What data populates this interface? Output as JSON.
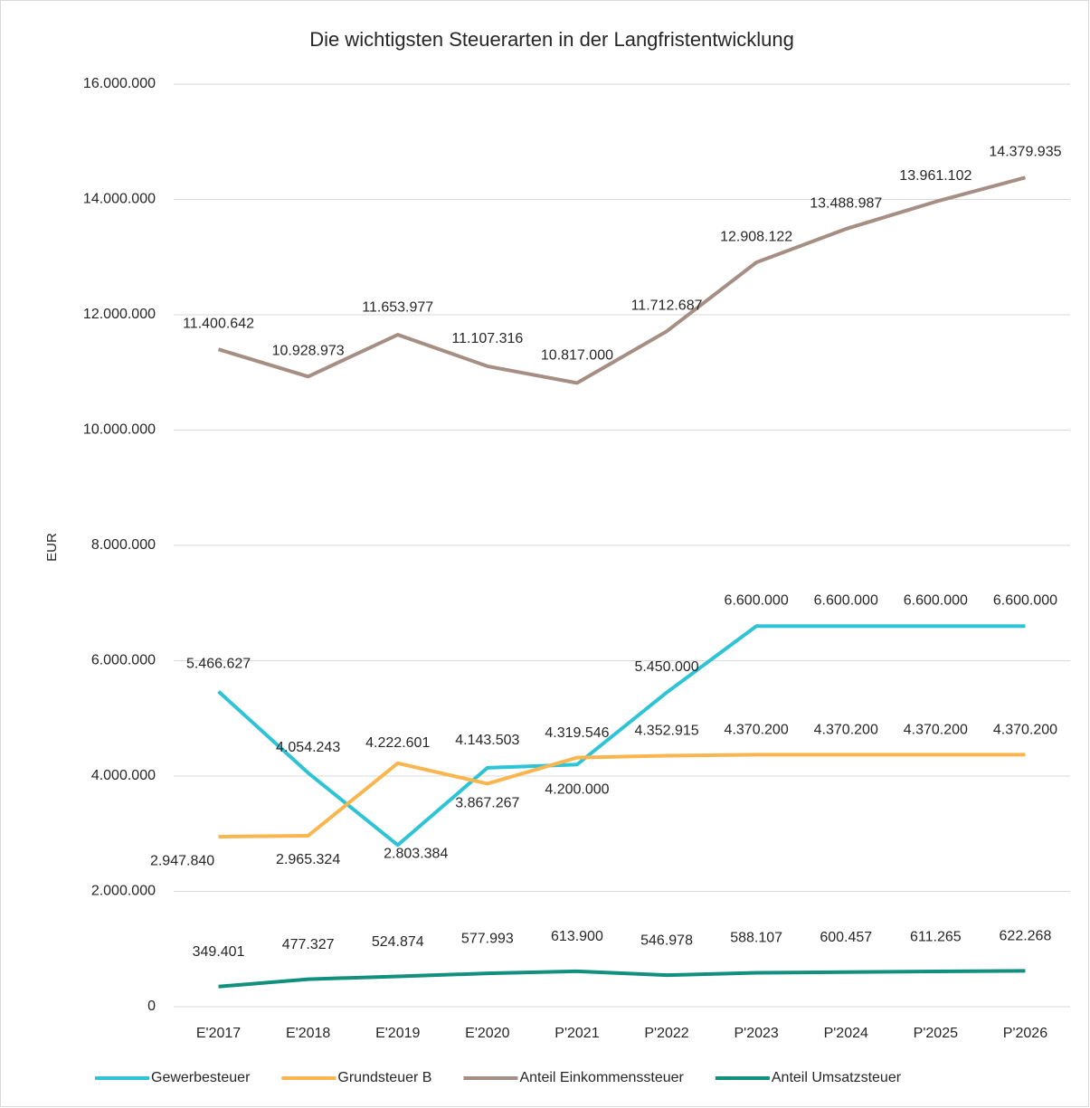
{
  "chart_data": {
    "type": "line",
    "title": "Die wichtigsten Steuerarten in der Langfristentwicklung",
    "y_label": "EUR",
    "categories": [
      "E'2017",
      "E'2018",
      "E'2019",
      "E'2020",
      "P'2021",
      "P'2022",
      "P'2023",
      "P'2024",
      "P'2025",
      "P'2026"
    ],
    "series": [
      {
        "name": "Gewerbesteuer",
        "color": "#2ec4d6",
        "values": [
          5466627,
          4054243,
          2803384,
          4143503,
          4200000,
          5450000,
          6600000,
          6600000,
          6600000,
          6600000
        ],
        "value_labels": [
          "5.466.627",
          "4.054.243",
          "2.803.384",
          "4.143.503",
          "4.200.000",
          "5.450.000",
          "6.600.000",
          "6.600.000",
          "6.600.000",
          "6.600.000"
        ]
      },
      {
        "name": "Grundsteuer B",
        "color": "#f9b64f",
        "values": [
          2947840,
          2965324,
          4222601,
          3867267,
          4319546,
          4352915,
          4370200,
          4370200,
          4370200,
          4370200
        ],
        "value_labels": [
          "2.947.840",
          "2.965.324",
          "4.222.601",
          "3.867.267",
          "4.319.546",
          "4.352.915",
          "4.370.200",
          "4.370.200",
          "4.370.200",
          "4.370.200"
        ]
      },
      {
        "name": "Anteil Einkommenssteuer",
        "color": "#a58e83",
        "values": [
          11400642,
          10928973,
          11653977,
          11107316,
          10817000,
          11712687,
          12908122,
          13488987,
          13961102,
          14379935
        ],
        "value_labels": [
          "11.400.642",
          "10.928.973",
          "11.653.977",
          "11.107.316",
          "10.817.000",
          "11.712.687",
          "12.908.122",
          "13.488.987",
          "13.961.102",
          "14.379.935"
        ]
      },
      {
        "name": "Anteil Umsatzsteuer",
        "color": "#12907e",
        "values": [
          349401,
          477327,
          524874,
          577993,
          613900,
          546978,
          588107,
          600457,
          611265,
          622268
        ],
        "value_labels": [
          "349.401",
          "477.327",
          "524.874",
          "577.993",
          "613.900",
          "546.978",
          "588.107",
          "600.457",
          "611.265",
          "622.268"
        ]
      }
    ],
    "ylim": [
      0,
      16000000
    ],
    "yticks": [
      0,
      {
        "value": 2000000,
        "label": "2.000.000"
      },
      {
        "value": 4000000,
        "label": "4.000.000"
      },
      {
        "value": 6000000,
        "label": "6.000.000"
      },
      {
        "value": 8000000,
        "label": "8.000.000"
      },
      {
        "value": 10000000,
        "label": "10.000.000"
      },
      {
        "value": 12000000,
        "label": "12.000.000"
      },
      {
        "value": 14000000,
        "label": "14.000.000"
      },
      {
        "value": 16000000,
        "label": "16.000.000"
      }
    ],
    "grid": true,
    "legend": "bottom"
  }
}
